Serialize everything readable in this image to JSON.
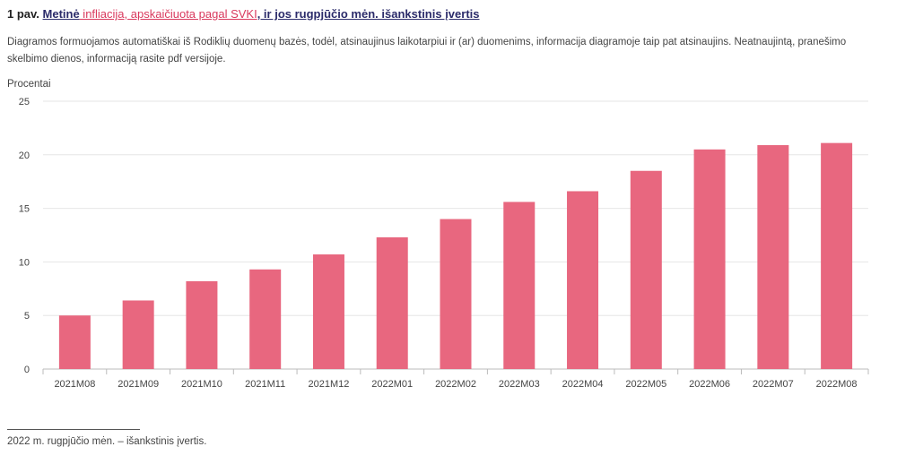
{
  "header": {
    "lead": "1 pav.",
    "part1": "Metinė",
    "part2": " infliacija, apskaičiuota pagal SVKI",
    "part3": ", ir jos rugpjūčio mėn. išankstinis įvertis"
  },
  "description": "Diagramos formuojamos automatiškai iš Rodiklių duomenų bazės, todėl, atsinaujinus laikotarpiui ir (ar) duomenims, informacija diagramoje taip pat atsinaujins. Neatnaujintą, pranešimo skelbimo dienos, informaciją rasite pdf versijoje.",
  "footnote": "2022 m. rugpjūčio mėn. – išankstinis įvertis.",
  "chart_data": {
    "type": "bar",
    "ylabel": "Procentai",
    "xlabel": "",
    "ylim": [
      0,
      25
    ],
    "yticks": [
      0,
      5,
      10,
      15,
      20,
      25
    ],
    "grid": true,
    "bar_color": "#e8677f",
    "categories": [
      "2021M08",
      "2021M09",
      "2021M10",
      "2021M11",
      "2021M12",
      "2022M01",
      "2022M02",
      "2022M03",
      "2022M04",
      "2022M05",
      "2022M06",
      "2022M07",
      "2022M08"
    ],
    "values": [
      5.0,
      6.4,
      8.2,
      9.3,
      10.7,
      12.3,
      14.0,
      15.6,
      16.6,
      18.5,
      20.5,
      20.9,
      21.1
    ]
  }
}
